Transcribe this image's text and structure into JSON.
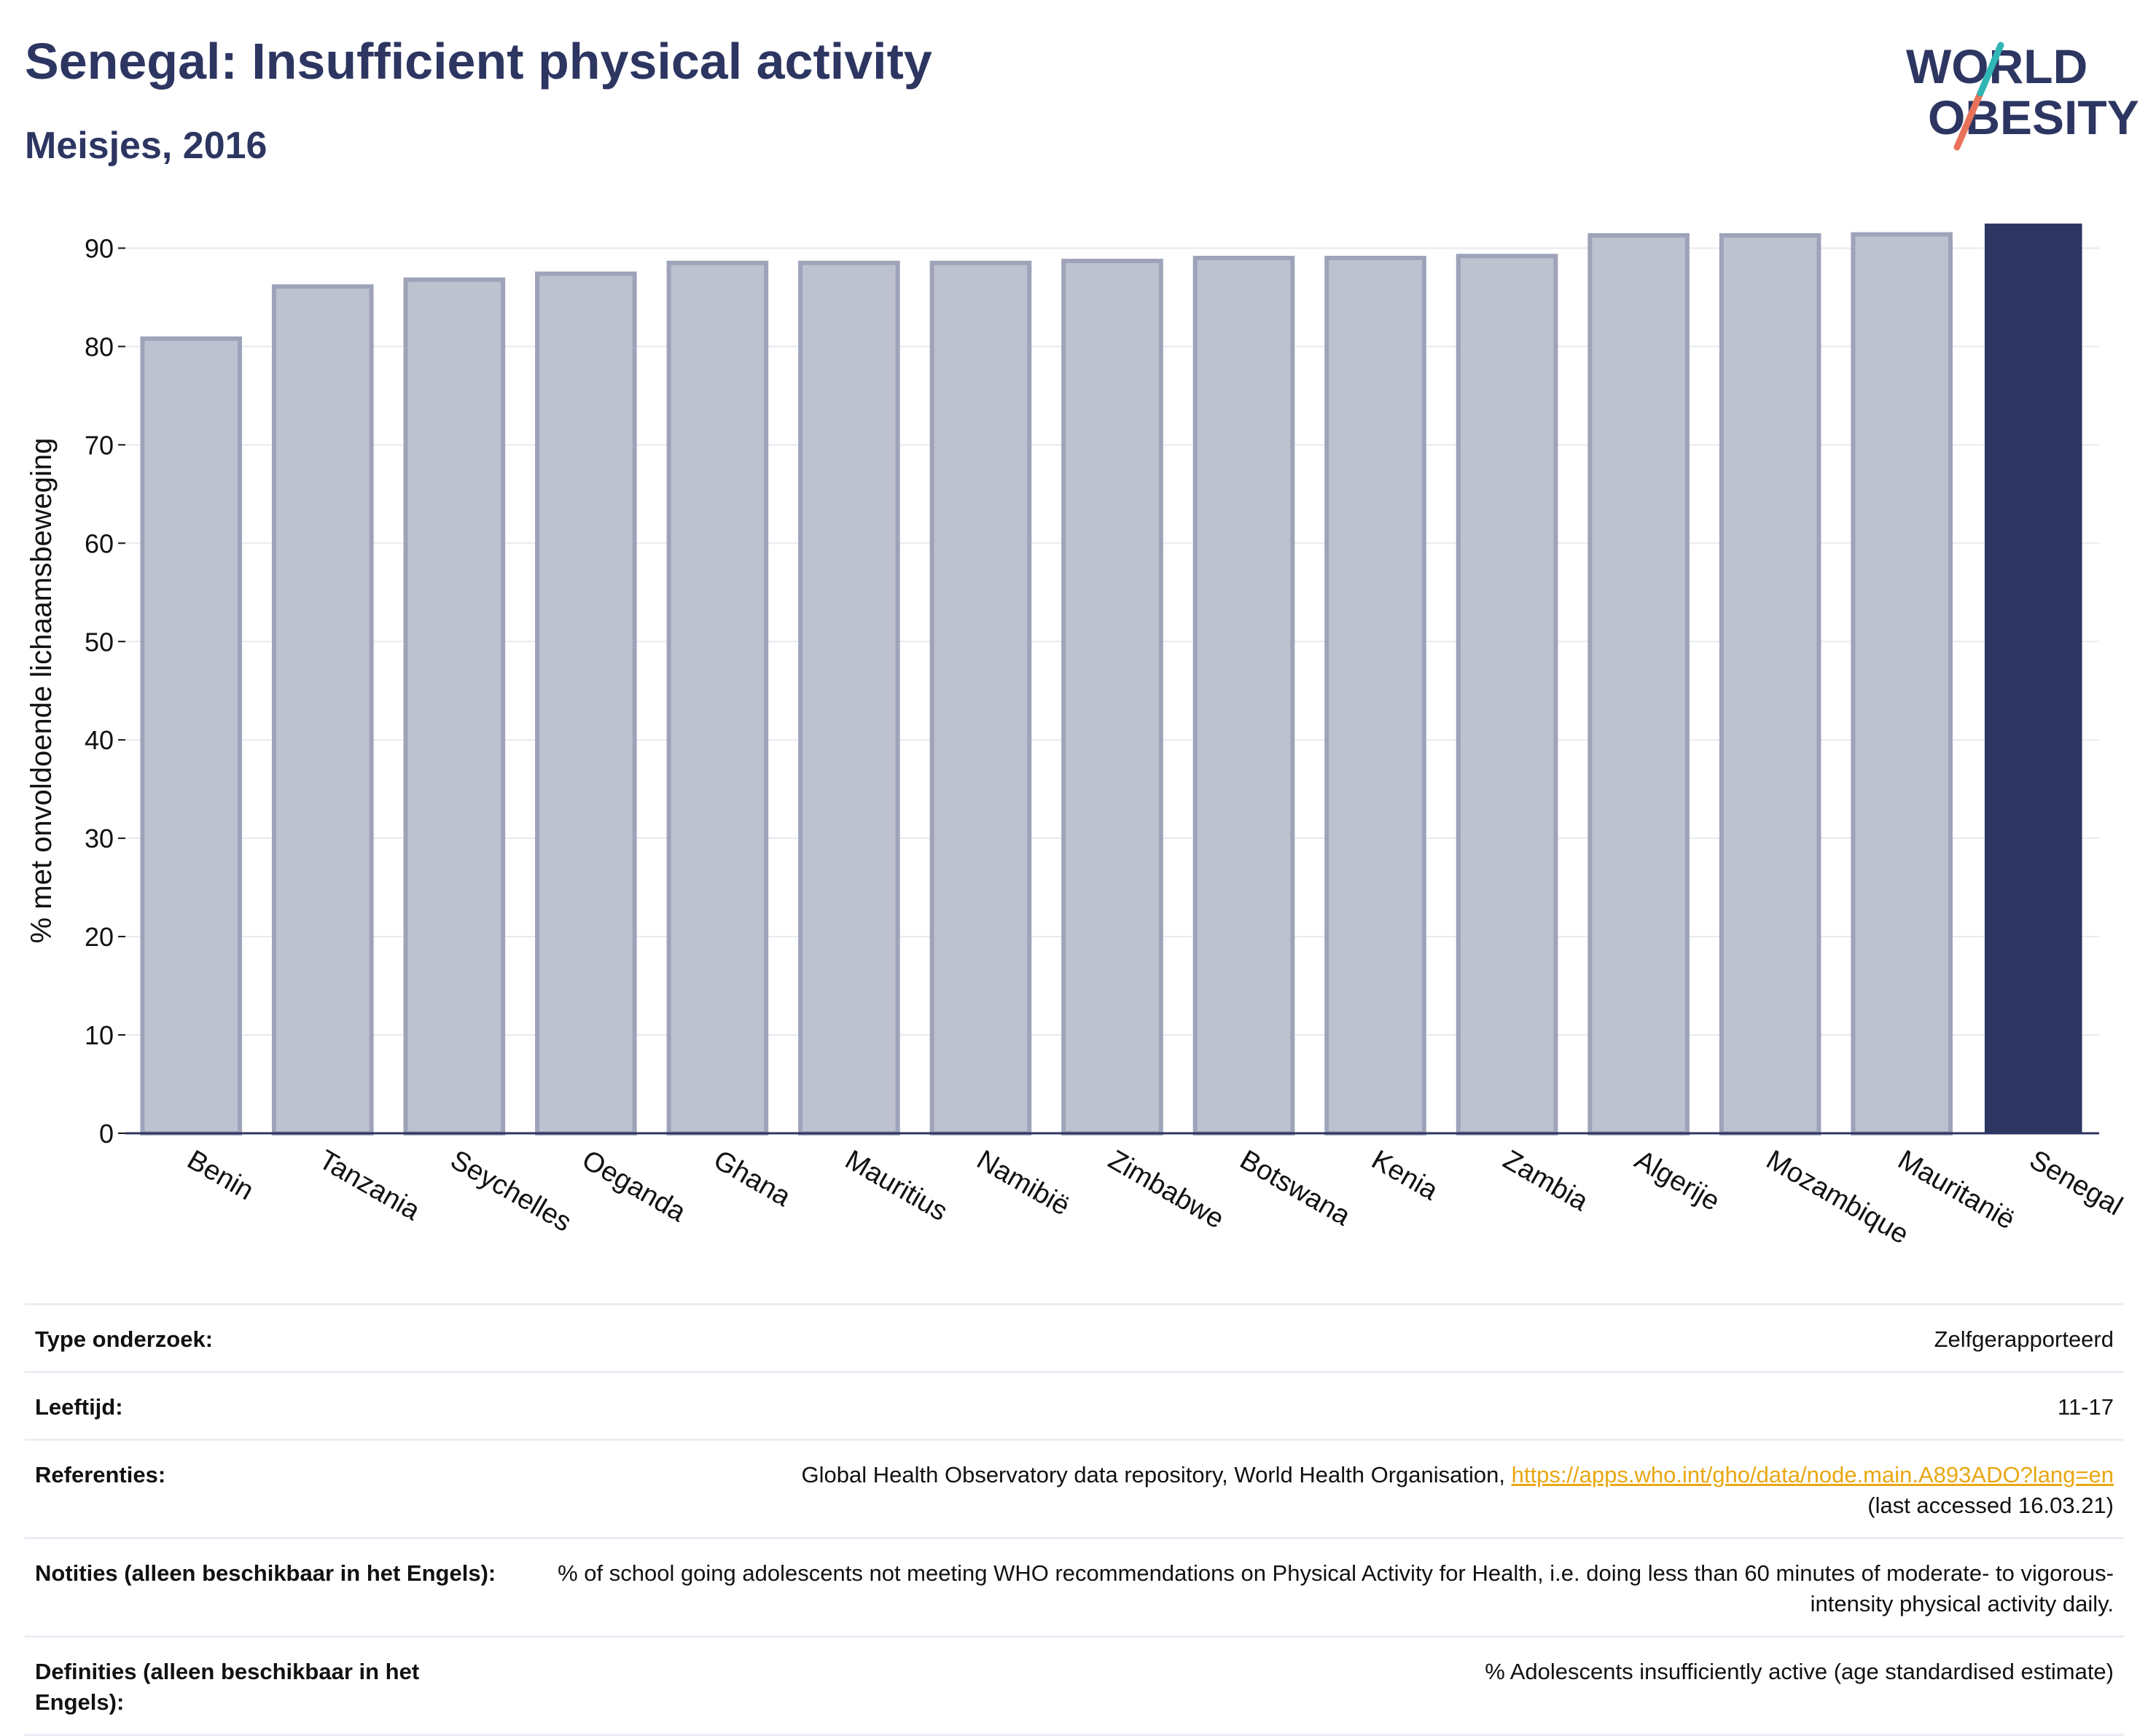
{
  "header": {
    "title": "Senegal: Insufficient physical activity",
    "subtitle": "Meisjes, 2016"
  },
  "logo": {
    "line1": "WORLD",
    "line2": "OBESITY",
    "colors": {
      "text": "#2d3561",
      "slash_teal": "#2fb5b4",
      "slash_coral": "#e8735a"
    }
  },
  "chart_data": {
    "type": "bar",
    "title": "",
    "xlabel": "",
    "ylabel": "% met onvoldoende lichaamsbeweging",
    "ylim": [
      0,
      93
    ],
    "yticks": [
      0,
      10,
      20,
      30,
      40,
      50,
      60,
      70,
      80,
      90
    ],
    "grid": true,
    "categories": [
      "Benin",
      "Tanzania",
      "Seychelles",
      "Oeganda",
      "Ghana",
      "Mauritius",
      "Namibië",
      "Zimbabwe",
      "Botswana",
      "Kenia",
      "Zambia",
      "Algerije",
      "Mozambique",
      "Mauritanië",
      "Senegal"
    ],
    "values": [
      80.8,
      86.1,
      86.8,
      87.4,
      88.5,
      88.5,
      88.5,
      88.7,
      89.0,
      89.0,
      89.2,
      91.3,
      91.3,
      91.4,
      92.5
    ],
    "highlight": "Senegal",
    "colors": {
      "bar": "#bec1cf",
      "bar_border": "#9ea3b9",
      "highlight": "#2d3561",
      "grid": "#e8e9ef",
      "axis": "#2d3561"
    }
  },
  "meta": [
    {
      "label": "Type onderzoek:",
      "value": "Zelfgerapporteerd"
    },
    {
      "label": "Leeftijd:",
      "value": "11-17"
    },
    {
      "label": "Referenties:",
      "value_before": "Global Health Observatory data repository, World Health Organisation, ",
      "link": "https://apps.who.int/gho/data/node.main.A893ADO?lang=en",
      "value_after": "(last accessed 16.03.21)"
    },
    {
      "label": "Notities (alleen beschikbaar in het Engels):",
      "value": "% of school going adolescents not meeting WHO recommendations on Physical Activity for Health, i.e. doing less than 60 minutes of moderate- to vigorous-intensity physical activity daily."
    },
    {
      "label": "Definities (alleen beschikbaar in het Engels):",
      "value": "% Adolescents insufficiently active (age standardised estimate)"
    }
  ]
}
